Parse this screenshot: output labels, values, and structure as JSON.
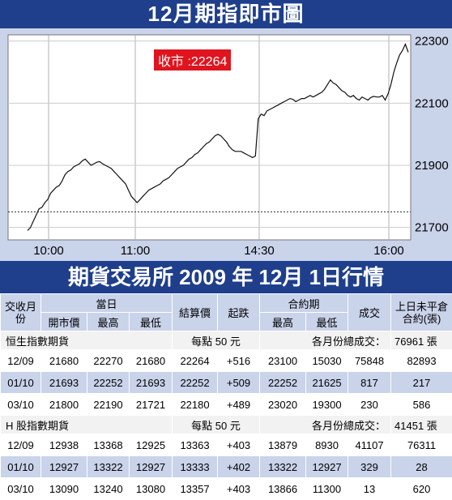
{
  "header": {
    "title": "12月期指即市圖"
  },
  "chart_data": {
    "type": "line",
    "close_label": "收市 :22264",
    "y_ticks": [
      "22300",
      "22100",
      "21900",
      "21700"
    ],
    "y_tick_values": [
      22300,
      22100,
      21900,
      21700
    ],
    "x_ticks": [
      "10:00",
      "11:00",
      "14:30",
      "16:00"
    ],
    "ylim": [
      21660,
      22320
    ],
    "reference_line": 21750,
    "series": [
      {
        "values": [
          21690,
          21700,
          21720,
          21740,
          21760,
          21765,
          21780,
          21790,
          21810,
          21820,
          21830,
          21835,
          21850,
          21870,
          21880,
          21885,
          21895,
          21900,
          21905,
          21915,
          21920,
          21910,
          21900,
          21905,
          21910,
          21912,
          21905,
          21900,
          21895,
          21890,
          21880,
          21870,
          21860,
          21850,
          21840,
          21820,
          21800,
          21790,
          21780,
          21790,
          21800,
          21810,
          21820,
          21825,
          21830,
          21835,
          21840,
          21850,
          21855,
          21860,
          21870,
          21880,
          21890,
          21895,
          21900,
          21910,
          21920,
          21925,
          21935,
          21940,
          21950,
          21960,
          21970,
          21975,
          21985,
          21995,
          22000,
          21995,
          21985,
          21975,
          21960,
          21950,
          21945,
          21945,
          21945,
          21940,
          21935,
          21930,
          21925,
          21930,
          22050,
          22065,
          22060,
          22075,
          22080,
          22085,
          22090,
          22095,
          22100,
          22105,
          22110,
          22115,
          22112,
          22105,
          22110,
          22115,
          22115,
          22120,
          22125,
          22120,
          22125,
          22130,
          22135,
          22145,
          22160,
          22175,
          22165,
          22160,
          22150,
          22140,
          22135,
          22125,
          22120,
          22125,
          22115,
          22110,
          22120,
          22115,
          22110,
          22118,
          22122,
          22120,
          22120,
          22125,
          22110,
          22130,
          22160,
          22200,
          22230,
          22255,
          22270,
          22290,
          22264
        ]
      }
    ]
  },
  "market": {
    "title": "期貨交易所 2009 年 12月 1日行情"
  },
  "table": {
    "head": {
      "month": "交收月份",
      "day": "當日",
      "open": "開市價",
      "high": "最高",
      "low": "最低",
      "settle": "結算價",
      "change": "起跌",
      "contract": "合約期",
      "c_high": "最高",
      "c_low": "最低",
      "volume": "成交",
      "oi": "上日未平倉合約(張)"
    },
    "sections": [
      {
        "name": "恒生指數期貨",
        "per_point": "每點 50 元",
        "total_label": "各月份總成交：",
        "total_value": "76961 張",
        "rows": [
          [
            "12/09",
            "21680",
            "22270",
            "21680",
            "22264",
            "+516",
            "23100",
            "15030",
            "75848",
            "82893"
          ],
          [
            "01/10",
            "21693",
            "22252",
            "21693",
            "22252",
            "+509",
            "22252",
            "21625",
            "817",
            "217"
          ],
          [
            "03/10",
            "21800",
            "22190",
            "21721",
            "22180",
            "+489",
            "23020",
            "19300",
            "230",
            "586"
          ]
        ]
      },
      {
        "name": "H 股指數期貨",
        "per_point": "每點 50 元",
        "total_label": "各月份總成交：",
        "total_value": "41451 張",
        "rows": [
          [
            "12/09",
            "12938",
            "13368",
            "12925",
            "13363",
            "+403",
            "13879",
            "8930",
            "41107",
            "76311"
          ],
          [
            "01/10",
            "12927",
            "13322",
            "12927",
            "13333",
            "+402",
            "13322",
            "12927",
            "329",
            "28"
          ],
          [
            "03/10",
            "13090",
            "13240",
            "13080",
            "13357",
            "+403",
            "13866",
            "11300",
            "13",
            "620"
          ]
        ]
      }
    ]
  }
}
